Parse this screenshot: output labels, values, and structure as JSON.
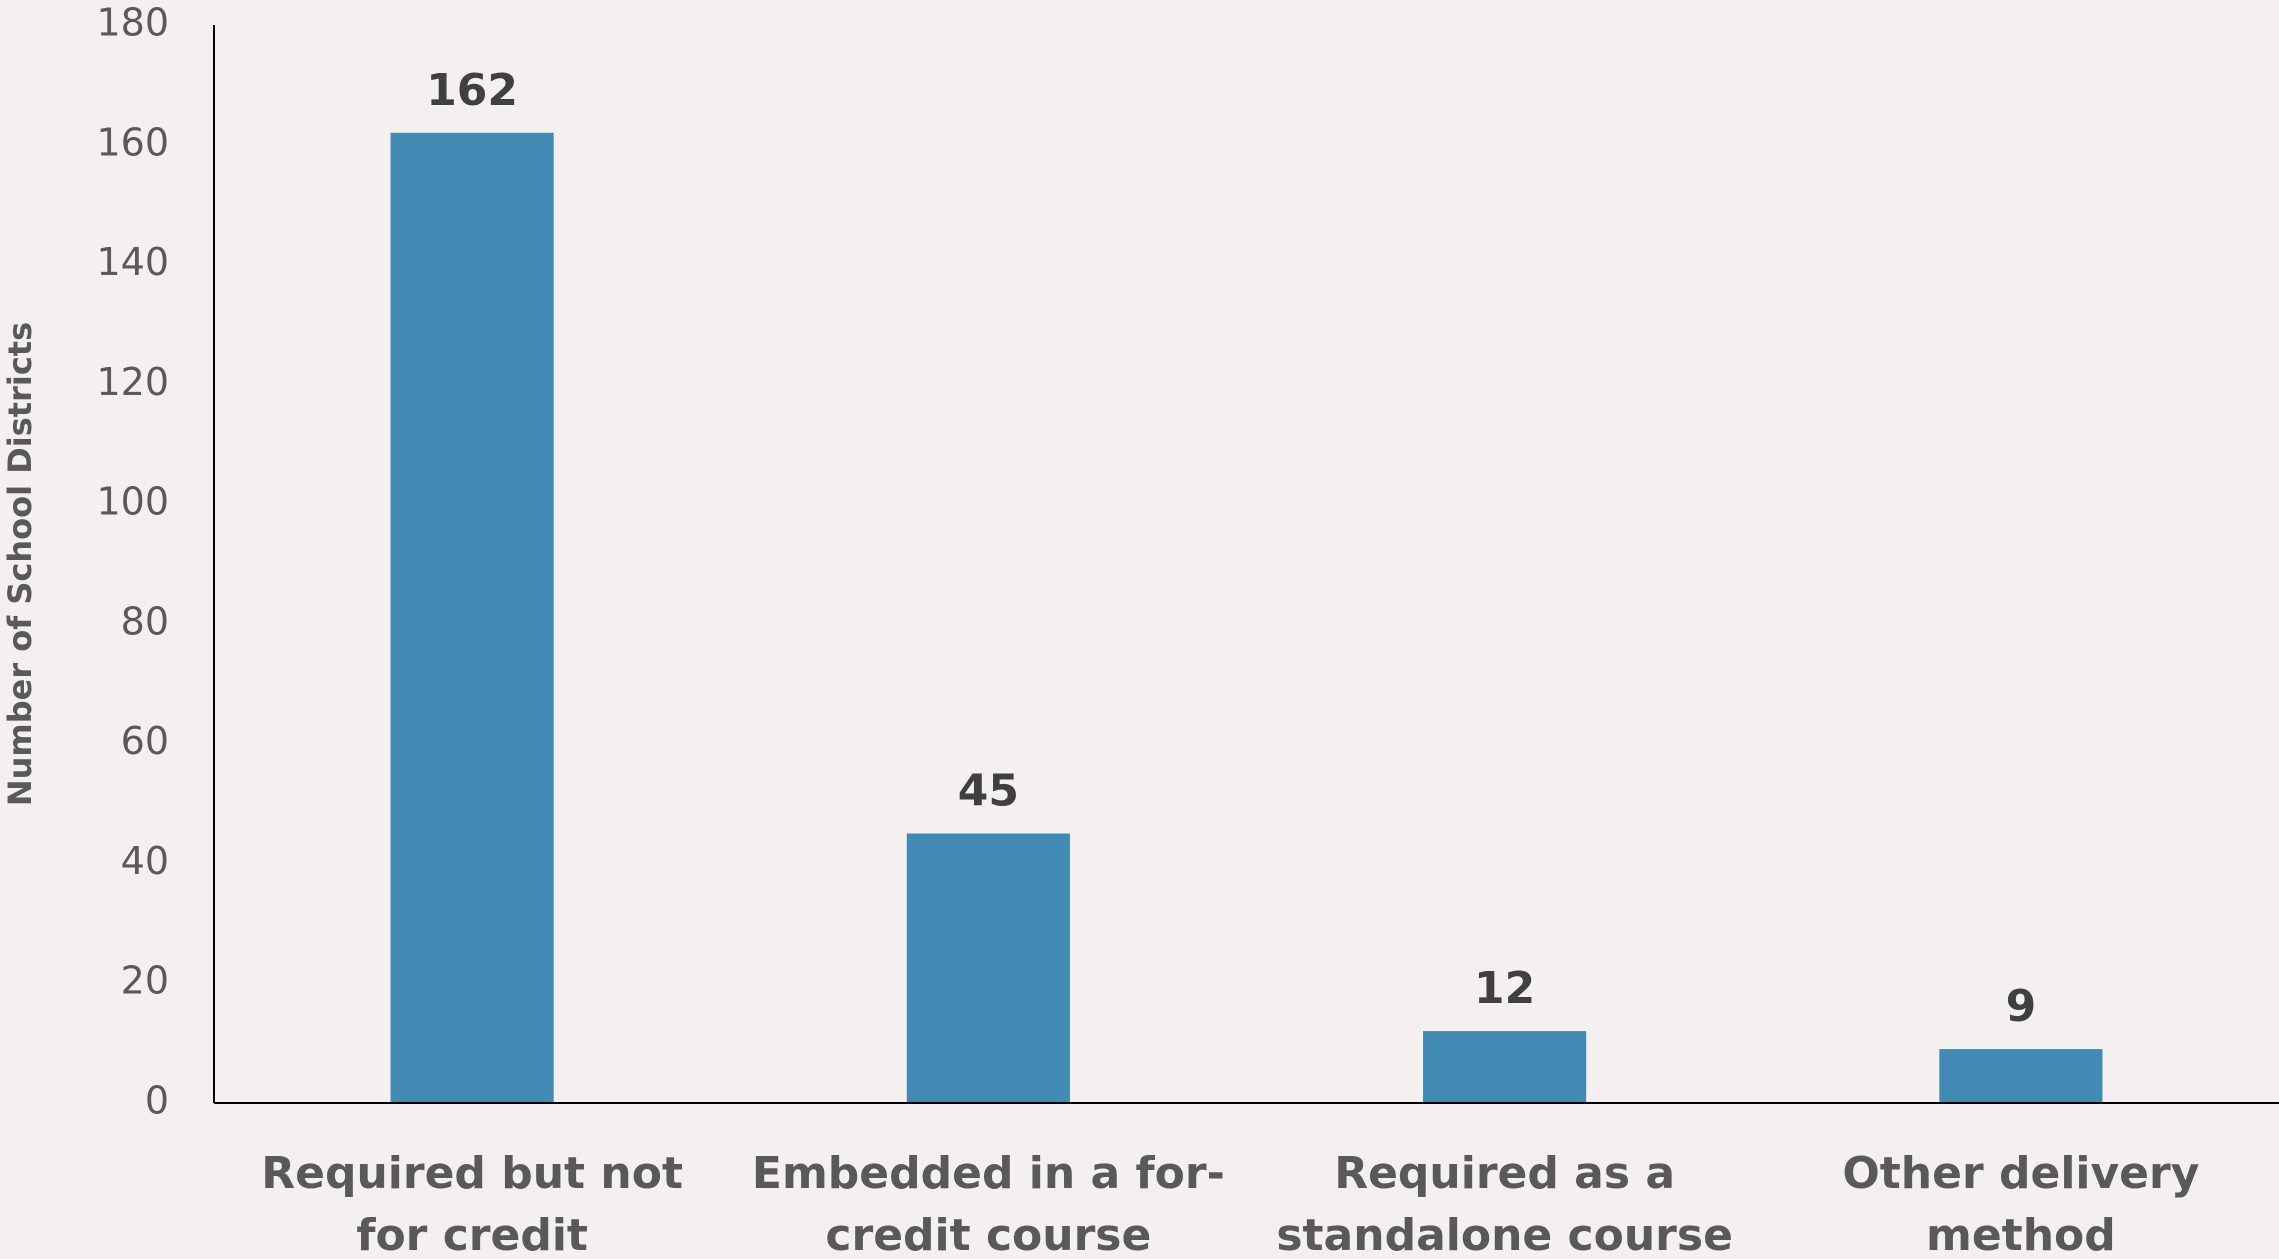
{
  "chart_data": {
    "type": "bar",
    "y_axis_label": "Number of School Districts",
    "categories": [
      "Required but not for credit",
      "Embedded in a for-credit course",
      "Required as a standalone course",
      "Other delivery method"
    ],
    "values": [
      162,
      45,
      12,
      9
    ],
    "color": "#418ab3",
    "ylim": [
      0,
      180
    ],
    "yticks": [
      0,
      20,
      40,
      60,
      80,
      100,
      120,
      140,
      160,
      180
    ],
    "grid": false
  }
}
